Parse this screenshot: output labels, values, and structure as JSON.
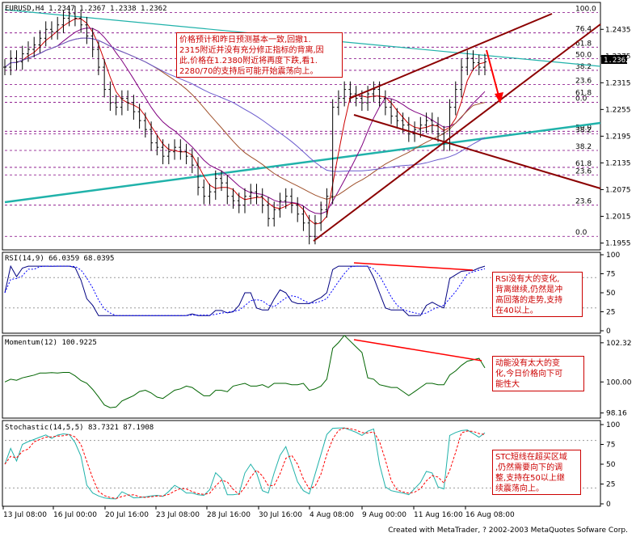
{
  "header": {
    "main": "EURUSD,H4  1.2347 1.2367 1.2338 1.2362",
    "rsi": "RSI(14,9)  66.0359  68.0395",
    "momentum": "Momentum(12)  100.9225",
    "stochastic": "Stochastic(14,5,5)  83.7321  87.1908"
  },
  "price_axis": [
    "1.2435",
    "1.2375",
    "1.2315",
    "1.2255",
    "1.2195",
    "1.2135",
    "1.2075",
    "1.2015",
    "1.1955"
  ],
  "current_price": "1.2362",
  "fib_levels": [
    {
      "label": "100.0",
      "price": 1.2473
    },
    {
      "label": "76.4",
      "price": 1.2427
    },
    {
      "label": "61.8",
      "price": 1.2395
    },
    {
      "label": "50.0",
      "price": 1.2369
    },
    {
      "label": "38.2",
      "price": 1.2343
    },
    {
      "label": "23.6",
      "price": 1.2311
    },
    {
      "label": "0.0",
      "price": 1.2271
    },
    {
      "label": "61.8",
      "price": 1.2284
    },
    {
      "label": "50.0",
      "price": 1.2206
    },
    {
      "label": "38.2",
      "price": 1.22
    },
    {
      "label": "38.2",
      "price": 1.2163
    },
    {
      "label": "61.8",
      "price": 1.2125
    },
    {
      "label": "23.6",
      "price": 1.2108
    },
    {
      "label": "23.6",
      "price": 1.204
    },
    {
      "label": "0.0",
      "price": 1.197
    }
  ],
  "rsi_axis": [
    "100",
    "75",
    "50",
    "25",
    "0"
  ],
  "momentum_axis": [
    "102.32",
    "100.00",
    "98.16"
  ],
  "stoch_axis": [
    "100",
    "75",
    "50",
    "25",
    "0"
  ],
  "time_axis": [
    "13 Jul 08:00",
    "16 Jul 00:00",
    "20 Jul 16:00",
    "23 Jul 08:00",
    "28 Jul 16:00",
    "30 Jul 16:00",
    "4 Aug 08:00",
    "9 Aug 00:00",
    "11 Aug 16:00",
    "16 Aug 08:00"
  ],
  "notes": {
    "price": "价格预计和昨日预测基本一致,回撤1.\n2315附近并没有充分修正指标的背离,因\n此,价格在1.2380附近将再度下跌,看1.\n2280/70的支持后可能开始震荡向上。",
    "rsi": "RSI没有大的变化,\n背离继续,仍然是冲\n高回落的走势,支持\n在40以上。",
    "momentum": "动能没有太大的变\n化,今日价格向下可\n能性大",
    "stochastic": "STC短线在超买区域\n,仍然需要向下的调\n整,支持在50以上继\n续震荡向上。"
  },
  "footer": "Created with MetaTrader, ? 2002-2003 MetaQuotes Sofware Corp.",
  "colors": {
    "candle": "#000000",
    "trend": "#8b0000",
    "aqua_line": "#20b2aa",
    "fib": "#800080",
    "signal": "#0000ff",
    "note": "#cc0000"
  },
  "chart_data": {
    "type": "candlestick",
    "symbol": "EURUSD",
    "timeframe": "H4",
    "ohlc_last": {
      "open": 1.2347,
      "high": 1.2367,
      "low": 1.2338,
      "close": 1.2362
    },
    "close": [
      1.235,
      1.237,
      1.2362,
      1.238,
      1.239,
      1.24,
      1.2415,
      1.2435,
      1.243,
      1.2445,
      1.246,
      1.247,
      1.246,
      1.2445,
      1.242,
      1.239,
      1.235,
      1.23,
      1.227,
      1.226,
      1.228,
      1.227,
      1.225,
      1.223,
      1.221,
      1.218,
      1.217,
      1.215,
      1.216,
      1.217,
      1.216,
      1.215,
      1.213,
      1.208,
      1.206,
      1.207,
      1.21,
      1.209,
      1.206,
      1.205,
      1.204,
      1.206,
      1.207,
      1.206,
      1.204,
      1.201,
      1.203,
      1.205,
      1.206,
      1.204,
      1.202,
      1.2,
      1.197,
      1.2,
      1.203,
      1.206,
      1.226,
      1.228,
      1.23,
      1.229,
      1.228,
      1.227,
      1.229,
      1.23,
      1.228,
      1.226,
      1.224,
      1.223,
      1.222,
      1.22,
      1.221,
      1.222,
      1.223,
      1.222,
      1.22,
      1.218,
      1.226,
      1.23,
      1.235,
      1.237,
      1.236,
      1.235,
      1.2362
    ]
  }
}
